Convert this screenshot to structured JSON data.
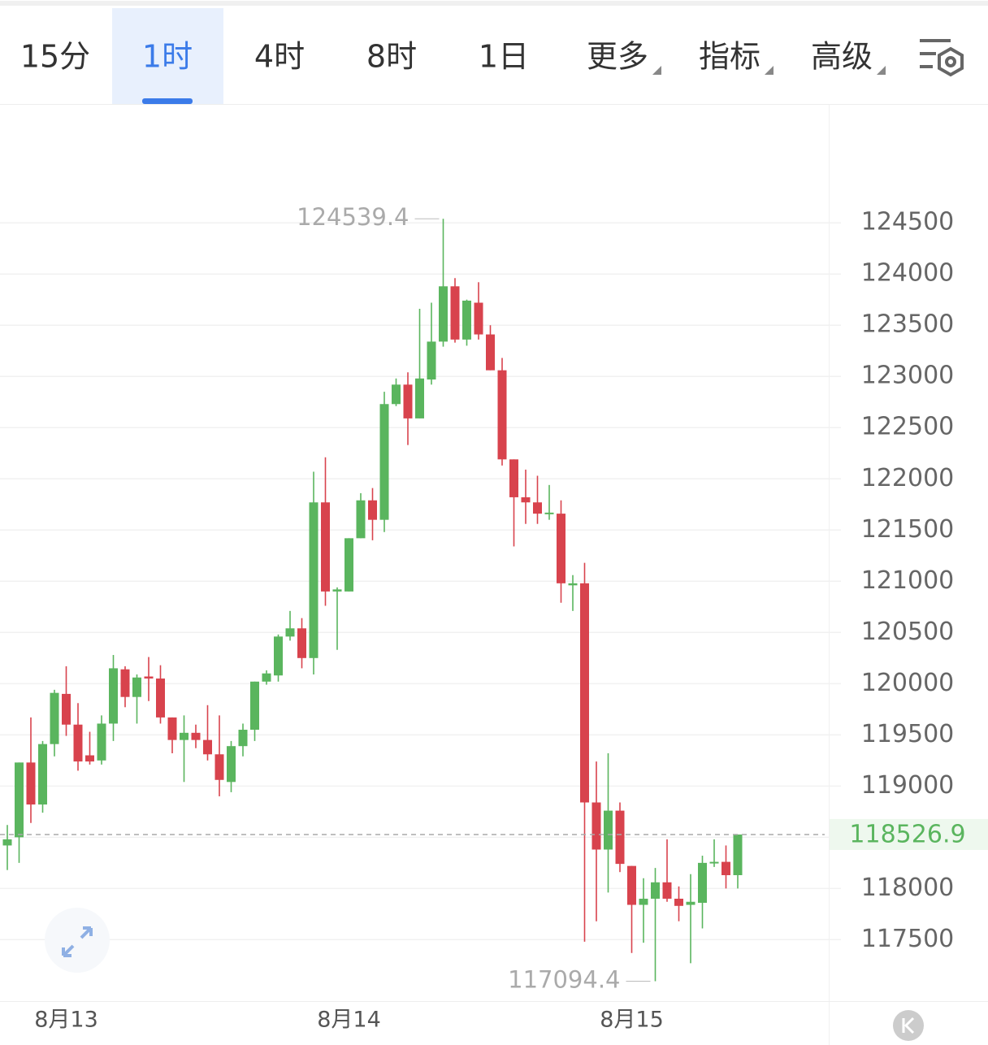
{
  "tabs": [
    "15分",
    "1时",
    "4时",
    "8时",
    "1日",
    "更多",
    "指标",
    "高级"
  ],
  "active_tab": 1,
  "chart_data": {
    "type": "candlestick",
    "up_color": "#5ab55e",
    "down_color": "#d8434d",
    "categories": [
      null,
      null,
      null,
      null,
      null,
      "8月13",
      null,
      null,
      null,
      null,
      null,
      null,
      null,
      null,
      null,
      null,
      null,
      null,
      null,
      null,
      null,
      null,
      null,
      null,
      null,
      null,
      null,
      null,
      null,
      "8月14",
      null,
      null,
      null,
      null,
      null,
      null,
      null,
      null,
      null,
      null,
      null,
      null,
      null,
      null,
      null,
      null,
      null,
      null,
      null,
      null,
      null,
      null,
      null,
      "8月15",
      null,
      null,
      null,
      null,
      null,
      null,
      null,
      null,
      null
    ],
    "open": [
      118420,
      118500,
      119230,
      118820,
      119410,
      119900,
      119600,
      119300,
      119250,
      119610,
      120140,
      119870,
      120070,
      120050,
      119670,
      119450,
      119520,
      119450,
      119310,
      119040,
      119390,
      119550,
      120020,
      120080,
      120460,
      120540,
      120250,
      121770,
      120900,
      120900,
      121420,
      121790,
      121600,
      122730,
      122920,
      122590,
      122970,
      123340,
      123880,
      123360,
      123720,
      123410,
      123060,
      122190,
      121820,
      121770,
      121660,
      121660,
      120960,
      120980,
      118840,
      118380,
      118760,
      118220,
      117840,
      117900,
      118060,
      117900,
      117840,
      117860,
      118250,
      118260,
      118130
    ],
    "high": [
      118620,
      119230,
      119670,
      119440,
      119940,
      120170,
      119810,
      119530,
      119690,
      120280,
      120170,
      120090,
      120260,
      120180,
      119670,
      119690,
      119600,
      119790,
      119690,
      119440,
      119610,
      120020,
      120130,
      120480,
      120710,
      120640,
      122070,
      122210,
      120940,
      121420,
      121860,
      121910,
      122850,
      122980,
      123040,
      123660,
      123720,
      124539.4,
      123960,
      123750,
      123920,
      123500,
      123180,
      122190,
      122090,
      122030,
      121940,
      121790,
      121060,
      121180,
      119240,
      119320,
      118840,
      118220,
      118100,
      118200,
      118480,
      118020,
      118140,
      118320,
      118480,
      118420,
      118526.9
    ],
    "low": [
      118180,
      118250,
      118640,
      118740,
      119290,
      119490,
      119150,
      119210,
      119210,
      119440,
      119770,
      119610,
      119830,
      119610,
      119320,
      119040,
      119370,
      119250,
      118900,
      118940,
      119290,
      119440,
      119990,
      120020,
      120420,
      120150,
      120090,
      120760,
      120330,
      120900,
      121420,
      121400,
      121480,
      122710,
      122330,
      122590,
      122920,
      123290,
      123330,
      123300,
      123360,
      123060,
      122130,
      121340,
      121560,
      121560,
      121600,
      120790,
      120710,
      117480,
      117680,
      117960,
      118160,
      117370,
      117470,
      117094.4,
      117870,
      117680,
      117270,
      117610,
      118210,
      118000,
      118000
    ],
    "close": [
      118480,
      119230,
      118820,
      119410,
      119910,
      119600,
      119240,
      119240,
      119610,
      120150,
      119870,
      120060,
      120050,
      119670,
      119450,
      119520,
      119450,
      119310,
      119060,
      119390,
      119550,
      120020,
      120100,
      120460,
      120540,
      120250,
      121770,
      120900,
      120920,
      121420,
      121790,
      121600,
      122730,
      122920,
      122590,
      122980,
      123340,
      123880,
      123360,
      123740,
      123410,
      123060,
      122190,
      121820,
      121770,
      121660,
      121670,
      120980,
      120980,
      118840,
      118380,
      118760,
      118240,
      117840,
      117900,
      118060,
      117900,
      117830,
      117870,
      118250,
      118260,
      118130,
      118526.9
    ],
    "ylim": [
      116900,
      125660
    ],
    "yticks": [
      117500,
      118000,
      118500,
      119000,
      119500,
      120000,
      120500,
      121000,
      121500,
      122000,
      122500,
      123000,
      123500,
      124000,
      124500
    ],
    "grid": true
  }
}
